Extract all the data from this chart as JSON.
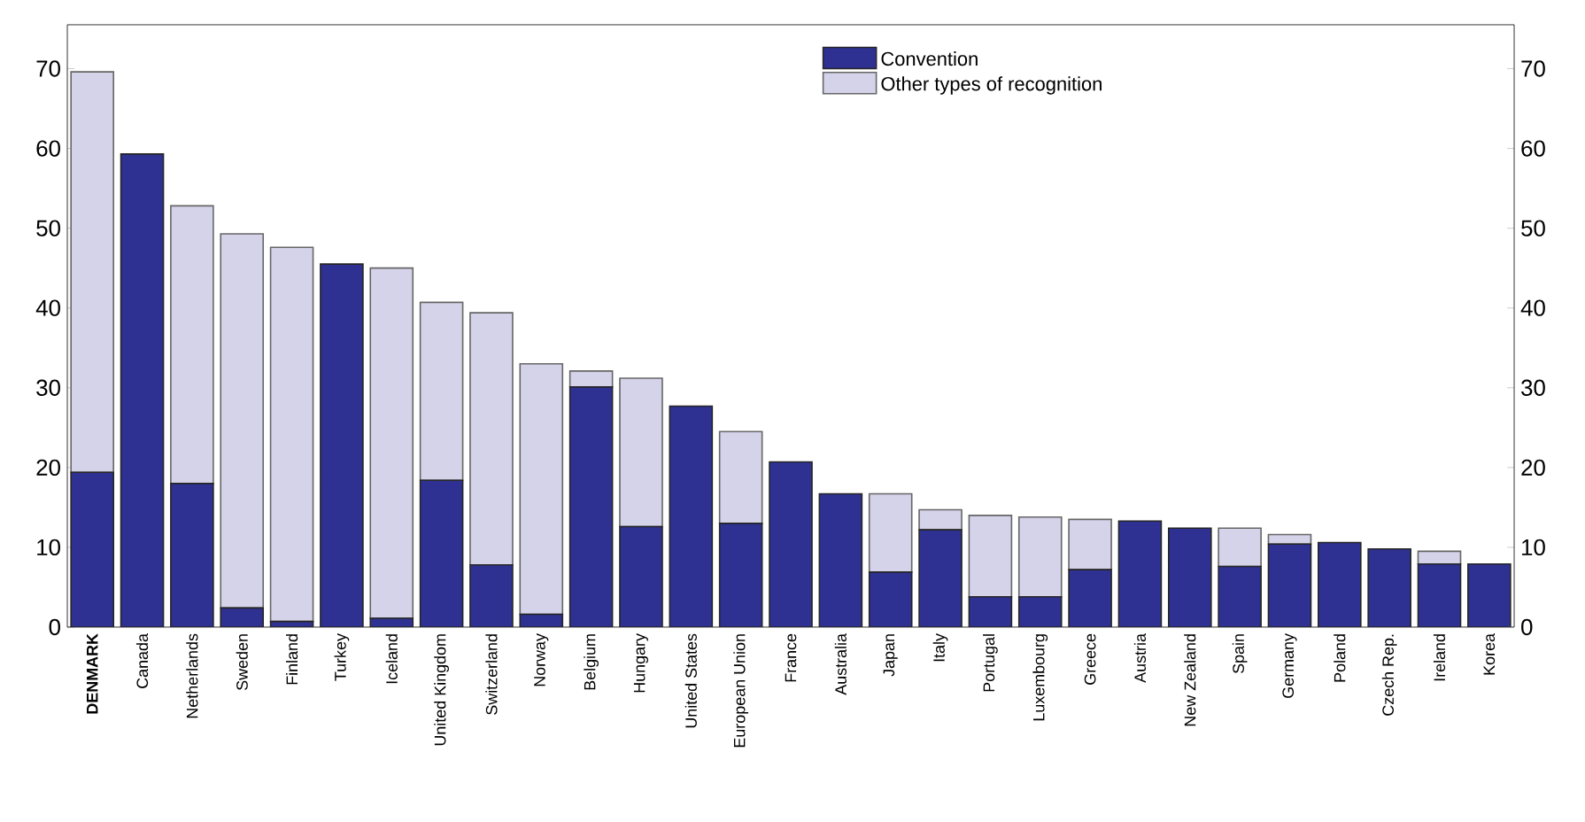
{
  "chart_data": {
    "type": "bar",
    "stacked": true,
    "categories": [
      "**DENMARK**",
      "Canada",
      "Netherlands",
      "Sweden",
      "Finland",
      "Turkey",
      "Iceland",
      "United Kingdom",
      "Switzerland",
      "Norway",
      "Belgium",
      "Hungary",
      "United States",
      "European Union",
      "France",
      "Australia",
      "Japan",
      "Italy",
      "Portugal",
      "Luxembourg",
      "Greece",
      "Austria",
      "New Zealand",
      "Spain",
      "Germany",
      "Poland",
      "Czech Rep.",
      "Ireland",
      "Korea"
    ],
    "series": [
      {
        "name": "Convention",
        "color": "#2e3192",
        "values": [
          19.4,
          59.3,
          18.0,
          2.4,
          0.7,
          45.5,
          1.1,
          18.4,
          7.8,
          1.6,
          30.1,
          12.6,
          27.7,
          13.0,
          20.7,
          16.7,
          6.9,
          12.2,
          3.8,
          3.8,
          7.2,
          13.3,
          12.4,
          7.6,
          10.4,
          10.6,
          9.8,
          7.9,
          7.9
        ]
      },
      {
        "name": "Other types of recognition",
        "color": "#d4d3ea",
        "values": [
          50.2,
          0,
          34.8,
          46.9,
          46.9,
          0,
          43.9,
          22.3,
          31.6,
          31.4,
          2.0,
          18.6,
          0,
          11.5,
          0,
          0,
          9.8,
          2.5,
          10.2,
          10.0,
          6.3,
          0,
          0,
          4.8,
          1.2,
          0,
          0,
          1.6,
          0
        ]
      }
    ],
    "ylim": [
      0,
      75.5
    ],
    "yticks": [
      0,
      10,
      20,
      30,
      40,
      50,
      60,
      70
    ],
    "y2lim": [
      0,
      75.5
    ],
    "y2ticks": [
      0,
      10,
      20,
      30,
      40,
      50,
      60,
      70
    ],
    "legend": "top",
    "grid": false
  }
}
